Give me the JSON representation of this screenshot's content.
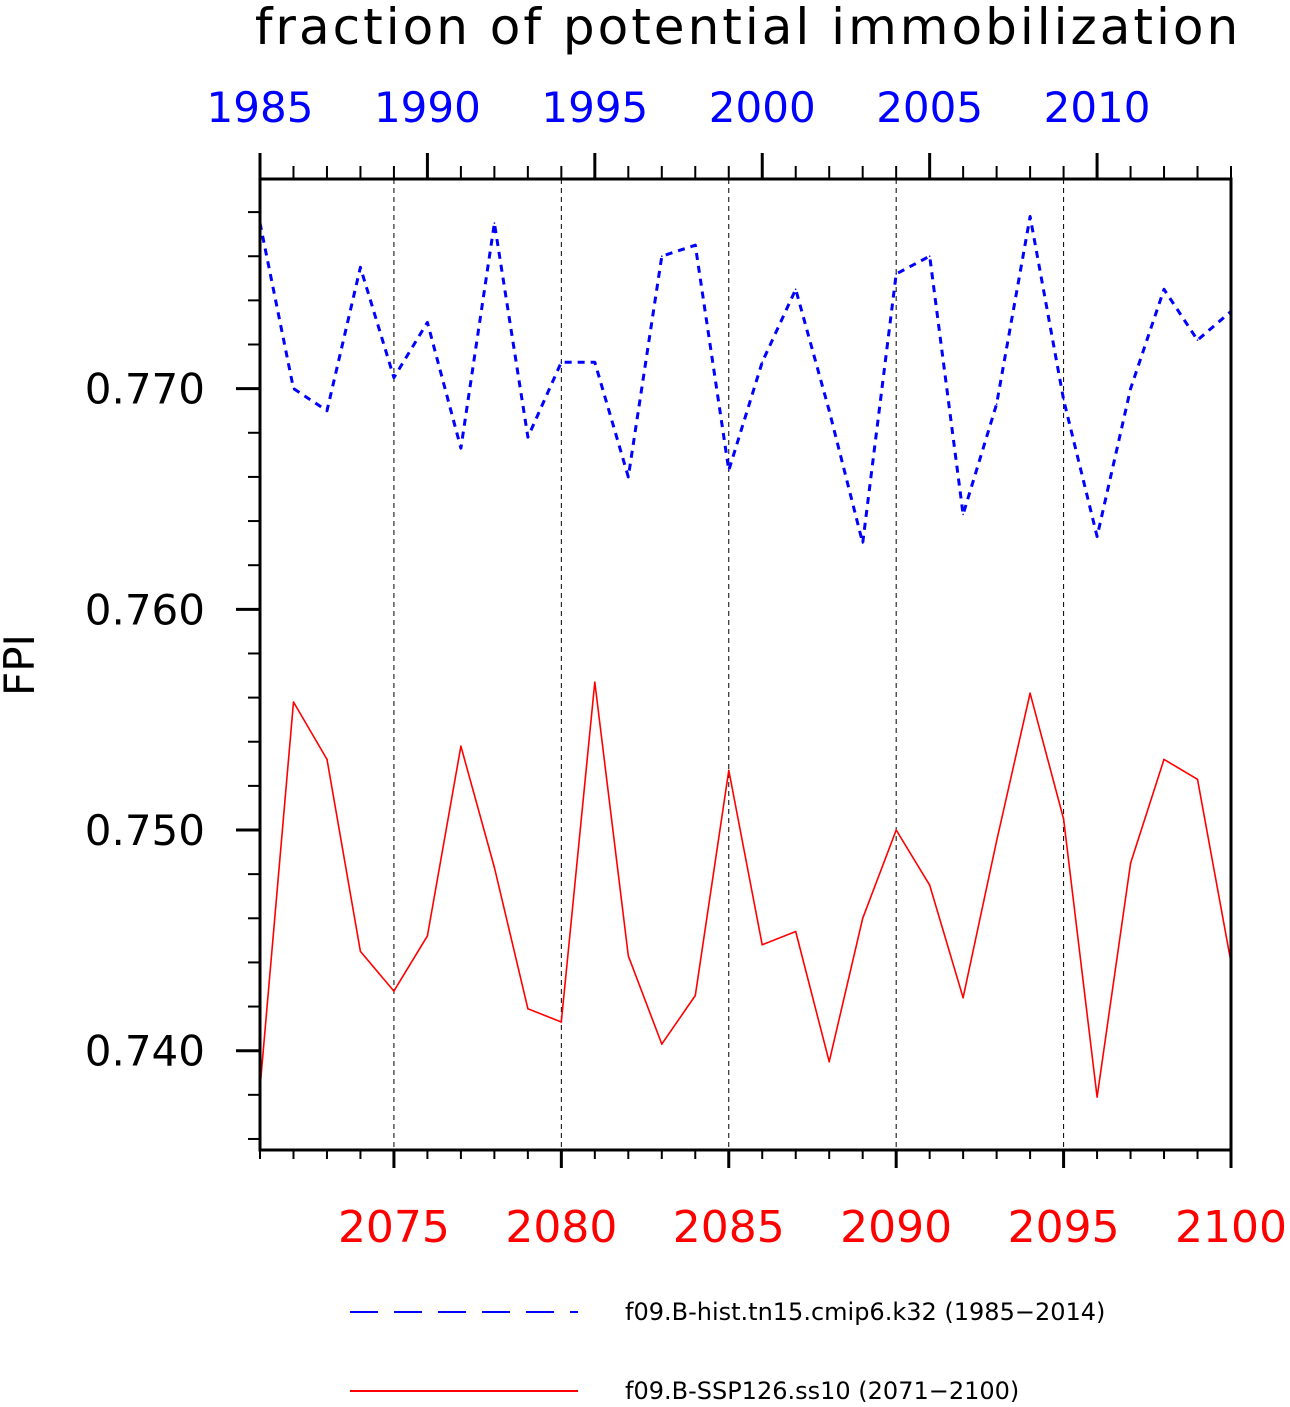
{
  "chart_data": {
    "type": "line",
    "title": "fraction of potential immobilization",
    "ylabel": "FPI",
    "ylim": [
      0.7355,
      0.7795
    ],
    "yticks": [
      "0.740",
      "0.750",
      "0.760",
      "0.770"
    ],
    "ytick_values": [
      0.74,
      0.75,
      0.76,
      0.77
    ],
    "grid": "vertical dashed lines at 2075, 2080, 2085, 2090, 2095",
    "axes": {
      "top": {
        "xlim": [
          1985,
          2014
        ],
        "ticks": [
          "1985",
          "1990",
          "1995",
          "2000",
          "2005",
          "2010"
        ],
        "tick_values": [
          1985,
          1990,
          1995,
          2000,
          2005,
          2010
        ],
        "color": "#0000ff"
      },
      "bottom": {
        "xlim": [
          2071,
          2100
        ],
        "ticks": [
          "2075",
          "2080",
          "2085",
          "2090",
          "2095",
          "2100"
        ],
        "tick_values": [
          2075,
          2080,
          2085,
          2090,
          2095,
          2100
        ],
        "color": "#ff0000"
      }
    },
    "legend_placement": "bottom",
    "series": [
      {
        "name": "f09.B-hist.tn15.cmip6.k32 (1985-2014)",
        "axis": "top",
        "color": "#0000ff",
        "style": "dashed",
        "x": [
          1985,
          1986,
          1987,
          1988,
          1989,
          1990,
          1991,
          1992,
          1993,
          1994,
          1995,
          1996,
          1997,
          1998,
          1999,
          2000,
          2001,
          2002,
          2003,
          2004,
          2005,
          2006,
          2007,
          2008,
          2009,
          2010,
          2011,
          2012,
          2013,
          2014
        ],
        "values": [
          0.7775,
          0.77,
          0.769,
          0.7755,
          0.7705,
          0.773,
          0.7673,
          0.7775,
          0.7678,
          0.7712,
          0.7712,
          0.766,
          0.776,
          0.7765,
          0.7663,
          0.7712,
          0.7745,
          0.769,
          0.763,
          0.7752,
          0.776,
          0.7643,
          0.7693,
          0.7778,
          0.7695,
          0.7633,
          0.77,
          0.7745,
          0.7722,
          0.7735
        ]
      },
      {
        "name": "f09.B-SSP126.ss10 (2071-2100)",
        "axis": "bottom",
        "color": "#ff0000",
        "style": "solid",
        "x": [
          2071,
          2072,
          2073,
          2074,
          2075,
          2076,
          2077,
          2078,
          2079,
          2080,
          2081,
          2082,
          2083,
          2084,
          2085,
          2086,
          2087,
          2088,
          2089,
          2090,
          2091,
          2092,
          2093,
          2094,
          2095,
          2096,
          2097,
          2098,
          2099,
          2100
        ],
        "values": [
          0.7383,
          0.7558,
          0.7532,
          0.7445,
          0.7427,
          0.7452,
          0.7538,
          0.7483,
          0.7419,
          0.7413,
          0.7567,
          0.7443,
          0.7403,
          0.7425,
          0.7527,
          0.7448,
          0.7454,
          0.7395,
          0.746,
          0.75,
          0.7475,
          0.7424,
          0.7495,
          0.7562,
          0.7505,
          0.7379,
          0.7485,
          0.7532,
          0.7523,
          0.744
        ]
      }
    ]
  },
  "legend": {
    "items": [
      {
        "label": "f09.B-hist.tn15.cmip6.k32 (1985−2014)",
        "color": "#0000ff",
        "style": "dashed"
      },
      {
        "label": "f09.B-SSP126.ss10 (2071−2100)",
        "color": "#ff0000",
        "style": "solid"
      }
    ]
  }
}
